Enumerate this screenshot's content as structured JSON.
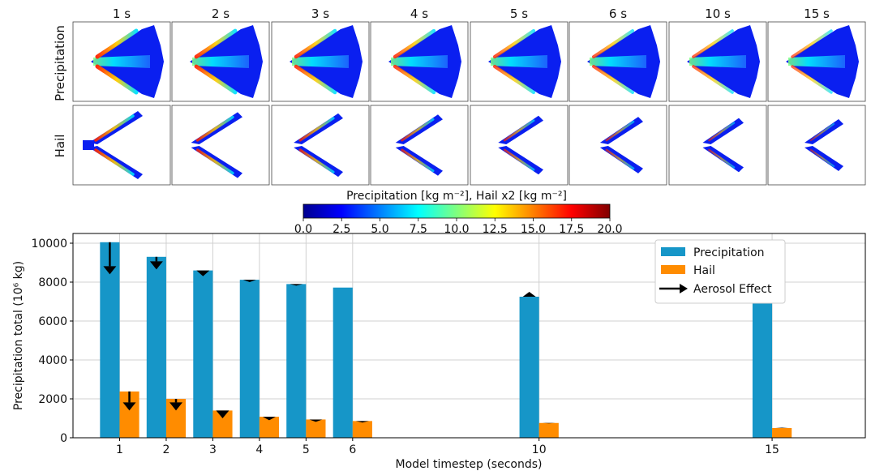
{
  "panels": {
    "times": [
      "1 s",
      "2 s",
      "3 s",
      "4 s",
      "5 s",
      "6 s",
      "10 s",
      "15 s"
    ],
    "row_labels": [
      "Precipitation",
      "Hail"
    ],
    "row_label_colors": [
      "#1b8fc4",
      "#ff7f0e"
    ],
    "colorbar": {
      "label": "Precipitation [kg m⁻²], Hail x2 [kg m⁻²]",
      "ticks": [
        "0.0",
        "2.5",
        "5.0",
        "7.5",
        "10.0",
        "12.5",
        "15.0",
        "17.5",
        "20.0"
      ],
      "colormap": "jet"
    }
  },
  "chart_data": {
    "type": "bar",
    "x": [
      1,
      2,
      3,
      4,
      5,
      6,
      10,
      15
    ],
    "series": [
      {
        "name": "Precipitation",
        "color": "#1696c8",
        "values": [
          10050,
          9300,
          8600,
          8120,
          7900,
          7720,
          7250,
          7180
        ]
      },
      {
        "name": "Hail",
        "color": "#ff8c00",
        "values": [
          2380,
          2000,
          1400,
          1080,
          940,
          860,
          760,
          500
        ]
      }
    ],
    "aerosol_effect": {
      "name": "Aerosol Effect",
      "precipitation_arrow_end": [
        8400,
        8650,
        8300,
        8000,
        7820,
        7720,
        7500,
        7900
      ],
      "hail_arrow_end": [
        1400,
        1400,
        1000,
        900,
        820,
        780,
        740,
        520
      ]
    },
    "xlabel": "Model timestep (seconds)",
    "ylabel": "Precipitation total (10⁶ kg)",
    "xticks": [
      "1",
      "2",
      "3",
      "4",
      "5",
      "6",
      "10",
      "15"
    ],
    "yticks": [
      "0",
      "2000",
      "4000",
      "6000",
      "8000",
      "10000"
    ],
    "ylim": [
      0,
      10500
    ],
    "xlim": [
      0,
      17
    ],
    "grid": true,
    "legend_placement": "top-right"
  }
}
